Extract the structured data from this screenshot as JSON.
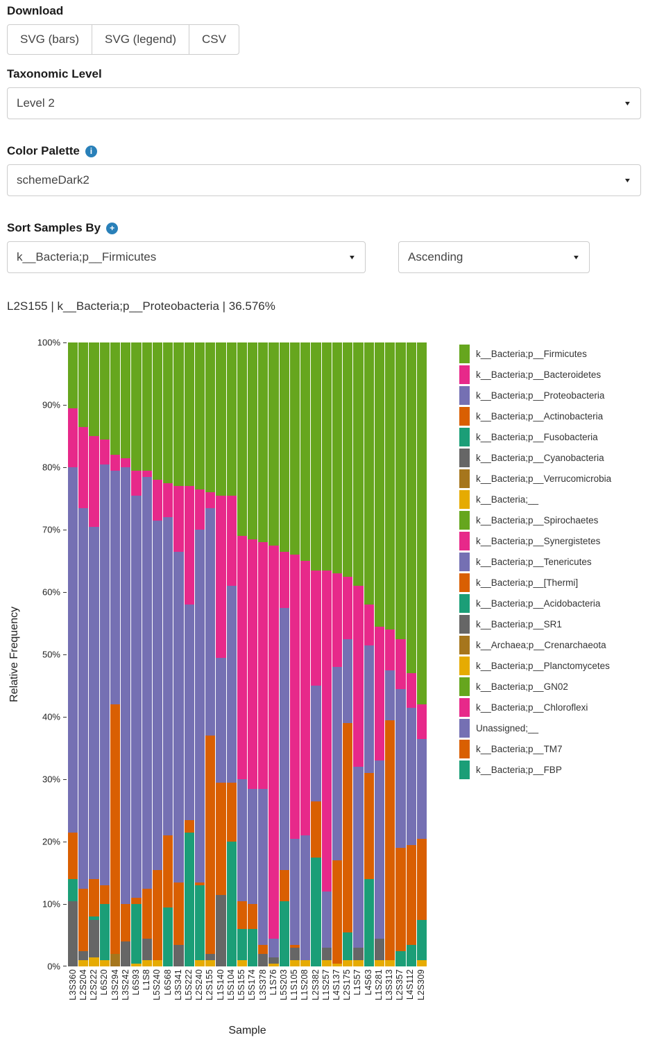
{
  "controls": {
    "download_label": "Download",
    "buttons": [
      "SVG (bars)",
      "SVG (legend)",
      "CSV"
    ],
    "taxonomic_level_label": "Taxonomic Level",
    "taxonomic_level_value": "Level 2",
    "color_palette_label": "Color Palette",
    "color_palette_value": "schemeDark2",
    "sort_label": "Sort Samples By",
    "sort_field_value": "k__Bacteria;p__Firmicutes",
    "sort_direction_value": "Ascending"
  },
  "status_text": "L2S155 | k__Bacteria;p__Proteobacteria | 36.576%",
  "colors": {
    "accent_blue": "#2980b9",
    "control_border": "#cccccc",
    "text": "#333333"
  },
  "chart_data": {
    "type": "bar",
    "stacked": true,
    "xlabel": "Sample",
    "ylabel": "Relative Frequency",
    "ylim": [
      0,
      100
    ],
    "y_ticks": [
      "0%",
      "10%",
      "20%",
      "30%",
      "40%",
      "50%",
      "60%",
      "70%",
      "80%",
      "90%",
      "100%"
    ],
    "grid": false,
    "legend_position": "right",
    "samples": [
      "L3S360",
      "L2S204",
      "L2S222",
      "L6S20",
      "L3S294",
      "L3S242",
      "L6S93",
      "L1S8",
      "L5S240",
      "L6S68",
      "L3S341",
      "L5S222",
      "L2S240",
      "L2S155",
      "L1S140",
      "L5S104",
      "L5S155",
      "L5S174",
      "L3S378",
      "L1S76",
      "L5S203",
      "L1S105",
      "L1S208",
      "L2S382",
      "L1S257",
      "L4S137",
      "L2S175",
      "L1S57",
      "L4S63",
      "L1S281",
      "L3S313",
      "L2S357",
      "L4S112",
      "L2S309"
    ],
    "stack_order_bottom_to_top": [
      "k__Bacteria;__",
      "k__Bacteria;p__Verrucomicrobia",
      "k__Bacteria;p__Cyanobacteria",
      "k__Bacteria;p__Fusobacteria",
      "k__Bacteria;p__Actinobacteria",
      "k__Bacteria;p__Proteobacteria",
      "k__Bacteria;p__Bacteroidetes",
      "k__Bacteria;p__Firmicutes"
    ],
    "series": [
      {
        "name": "k__Bacteria;__",
        "color": "#e6ab02",
        "values": [
          0,
          1,
          1.5,
          1,
          0,
          0,
          0.5,
          1,
          1,
          0,
          0,
          0,
          1,
          1,
          0,
          0,
          1,
          0,
          0,
          0.5,
          0,
          1,
          1,
          0,
          1,
          0.5,
          1,
          1,
          0,
          1,
          1,
          0,
          0,
          1
        ]
      },
      {
        "name": "k__Bacteria;p__Verrucomicrobia",
        "color": "#a6761d",
        "values": [
          0,
          0,
          0,
          0,
          2,
          0,
          0,
          0,
          0,
          0,
          0,
          0,
          0,
          0,
          0,
          0,
          0,
          0,
          0,
          0,
          0,
          0,
          0,
          0,
          0,
          0,
          0,
          0,
          0,
          0,
          0,
          0,
          0,
          0
        ]
      },
      {
        "name": "k__Bacteria;p__Cyanobacteria",
        "color": "#666666",
        "values": [
          10.5,
          1.5,
          6,
          0,
          0,
          4,
          0,
          3.5,
          0,
          0,
          3.5,
          0,
          0,
          1,
          11.5,
          0,
          0,
          0,
          2,
          1,
          0,
          2,
          0,
          0,
          2,
          0,
          0,
          2,
          0,
          3.5,
          0,
          0,
          0,
          0
        ]
      },
      {
        "name": "k__Bacteria;p__Fusobacteria",
        "color": "#1b9e77",
        "values": [
          3.5,
          0,
          0.5,
          9,
          0,
          0,
          9.5,
          0,
          0,
          9.5,
          0,
          21.5,
          12,
          0,
          0,
          20,
          5,
          6,
          0,
          0,
          10.5,
          0,
          0,
          17.5,
          0,
          0,
          4.5,
          0,
          14,
          0,
          0,
          2.5,
          3.5,
          6.5
        ]
      },
      {
        "name": "k__Bacteria;p__Actinobacteria",
        "color": "#d95f02",
        "values": [
          7.5,
          10,
          6,
          3,
          40,
          6,
          1,
          8,
          14.5,
          11.5,
          10,
          2,
          0.5,
          35,
          18,
          9.5,
          4.5,
          4,
          1.5,
          0,
          5,
          0.5,
          0,
          9,
          0,
          16.5,
          33.5,
          0,
          17,
          0,
          38.5,
          16.5,
          16,
          13
        ]
      },
      {
        "name": "k__Bacteria;p__Proteobacteria",
        "color": "#7570b3",
        "values": [
          58.5,
          61,
          56.5,
          67.5,
          37.5,
          70,
          64.5,
          66,
          56,
          51,
          53,
          34.5,
          56.5,
          36.5,
          20,
          31.5,
          19.5,
          18.5,
          25,
          3,
          42,
          17,
          20,
          18.5,
          9,
          31,
          13.5,
          29,
          20.5,
          28.5,
          8,
          25.5,
          22,
          16
        ]
      },
      {
        "name": "k__Bacteria;p__Bacteroidetes",
        "color": "#e7298a",
        "values": [
          9.5,
          13,
          14.5,
          4,
          2.5,
          1.5,
          4,
          1,
          6.5,
          5.5,
          10.5,
          19,
          6.5,
          2.5,
          26,
          14.5,
          39,
          40,
          39.5,
          63,
          9,
          45.5,
          44,
          18.5,
          51.5,
          15,
          10,
          29,
          6.5,
          21.5,
          6.5,
          8,
          5.5,
          5.5
        ]
      },
      {
        "name": "k__Bacteria;p__Firmicutes",
        "color": "#66a61e",
        "values": [
          10.5,
          13.5,
          15,
          15.5,
          18,
          18.5,
          20.5,
          20.5,
          22,
          22.5,
          23,
          23,
          23.5,
          24,
          24.5,
          24.5,
          31,
          31.5,
          32,
          32.5,
          33.5,
          34,
          35,
          36.5,
          36.5,
          37,
          37.5,
          39,
          42,
          45.5,
          46,
          47.5,
          53,
          58
        ]
      }
    ],
    "legend": [
      {
        "label": "k__Bacteria;p__Firmicutes",
        "color": "#66a61e"
      },
      {
        "label": "k__Bacteria;p__Bacteroidetes",
        "color": "#e7298a"
      },
      {
        "label": "k__Bacteria;p__Proteobacteria",
        "color": "#7570b3"
      },
      {
        "label": "k__Bacteria;p__Actinobacteria",
        "color": "#d95f02"
      },
      {
        "label": "k__Bacteria;p__Fusobacteria",
        "color": "#1b9e77"
      },
      {
        "label": "k__Bacteria;p__Cyanobacteria",
        "color": "#666666"
      },
      {
        "label": "k__Bacteria;p__Verrucomicrobia",
        "color": "#a6761d"
      },
      {
        "label": "k__Bacteria;__",
        "color": "#e6ab02"
      },
      {
        "label": "k__Bacteria;p__Spirochaetes",
        "color": "#66a61e"
      },
      {
        "label": "k__Bacteria;p__Synergistetes",
        "color": "#e7298a"
      },
      {
        "label": "k__Bacteria;p__Tenericutes",
        "color": "#7570b3"
      },
      {
        "label": "k__Bacteria;p__[Thermi]",
        "color": "#d95f02"
      },
      {
        "label": "k__Bacteria;p__Acidobacteria",
        "color": "#1b9e77"
      },
      {
        "label": "k__Bacteria;p__SR1",
        "color": "#666666"
      },
      {
        "label": "k__Archaea;p__Crenarchaeota",
        "color": "#a6761d"
      },
      {
        "label": "k__Bacteria;p__Planctomycetes",
        "color": "#e6ab02"
      },
      {
        "label": "k__Bacteria;p__GN02",
        "color": "#66a61e"
      },
      {
        "label": "k__Bacteria;p__Chloroflexi",
        "color": "#e7298a"
      },
      {
        "label": "Unassigned;__",
        "color": "#7570b3"
      },
      {
        "label": "k__Bacteria;p__TM7",
        "color": "#d95f02"
      },
      {
        "label": "k__Bacteria;p__FBP",
        "color": "#1b9e77"
      }
    ]
  }
}
